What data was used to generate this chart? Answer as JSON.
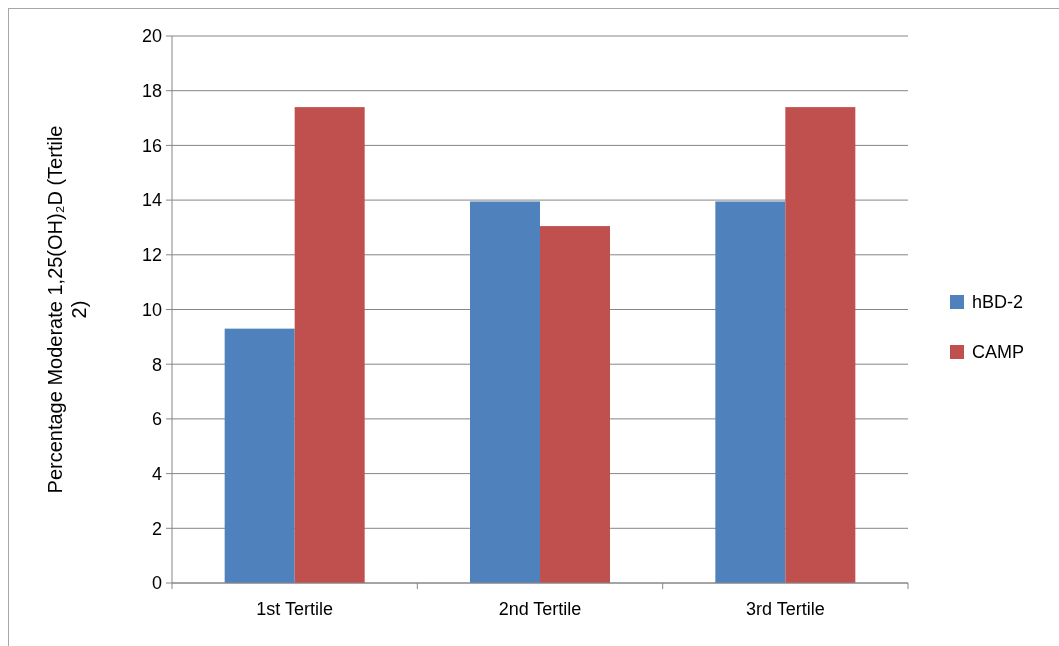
{
  "chart_data": {
    "type": "bar",
    "ylabel": "Percentage Moderate 1,25(OH)₂D (Tertile 2)",
    "categories": [
      "1st Tertile",
      "2nd Tertile",
      "3rd Tertile"
    ],
    "series": [
      {
        "name": "hBD-2",
        "color": "#4f81bd",
        "values": [
          9.3,
          13.95,
          13.95
        ]
      },
      {
        "name": "CAMP",
        "color": "#c0504d",
        "values": [
          17.4,
          13.05,
          17.4
        ]
      }
    ],
    "ylim": [
      0,
      20
    ],
    "yticks": [
      0,
      2,
      4,
      6,
      8,
      10,
      12,
      14,
      16,
      18,
      20
    ],
    "grid": "y",
    "legend": "right"
  }
}
